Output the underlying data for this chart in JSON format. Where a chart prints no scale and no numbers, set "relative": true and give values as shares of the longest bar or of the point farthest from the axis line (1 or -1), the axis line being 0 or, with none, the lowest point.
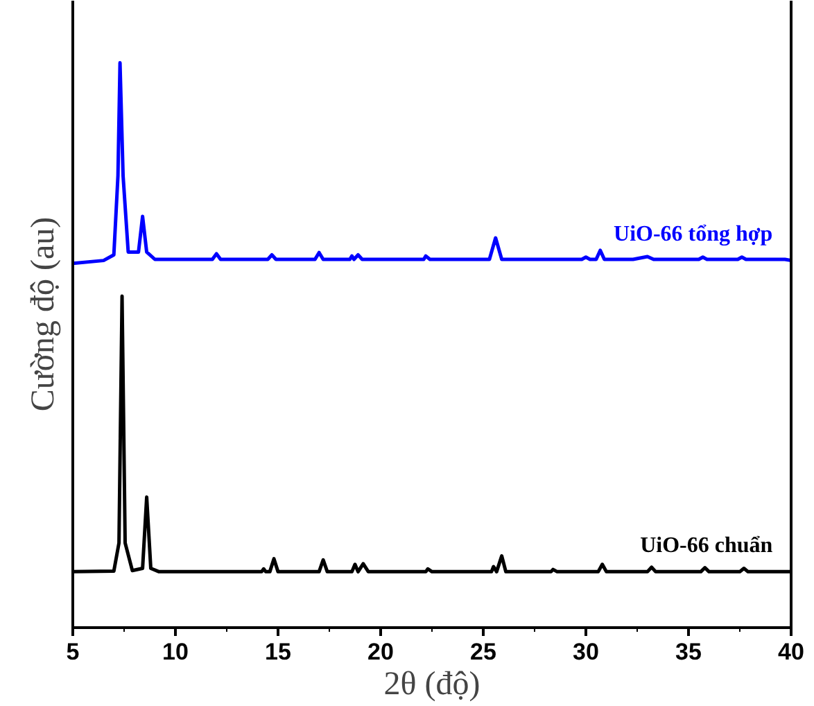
{
  "chart_data": {
    "type": "line",
    "relative": true,
    "xlabel": "2θ (độ)",
    "ylabel": "Cường độ (au)",
    "xlim": [
      5,
      40
    ],
    "xticks": [
      5,
      10,
      15,
      20,
      25,
      30,
      35,
      40
    ],
    "grid": false,
    "legend": false,
    "marker": "none",
    "line_style": "solid",
    "series": [
      {
        "name": "UiO-66 tổng hợp",
        "color": "#0000ff",
        "x": [
          5.0,
          6.5,
          7.0,
          7.2,
          7.3,
          7.45,
          7.7,
          8.2,
          8.4,
          8.6,
          9.0,
          11.8,
          12.0,
          12.2,
          14.5,
          14.7,
          14.9,
          16.8,
          17.0,
          17.2,
          18.5,
          18.6,
          18.7,
          18.9,
          19.1,
          21.0,
          22.1,
          22.2,
          22.4,
          25.3,
          25.6,
          25.9,
          28.0,
          29.8,
          30.0,
          30.2,
          30.5,
          30.7,
          30.9,
          32.3,
          33.0,
          33.3,
          35.5,
          35.7,
          35.9,
          37.4,
          37.6,
          37.8,
          39.7,
          40.0
        ],
        "values": [
          0.645,
          0.65,
          0.66,
          0.8,
          1.0,
          0.8,
          0.665,
          0.665,
          0.728,
          0.665,
          0.652,
          0.652,
          0.662,
          0.652,
          0.652,
          0.66,
          0.652,
          0.652,
          0.664,
          0.652,
          0.652,
          0.658,
          0.652,
          0.66,
          0.652,
          0.652,
          0.652,
          0.658,
          0.652,
          0.652,
          0.69,
          0.652,
          0.652,
          0.652,
          0.656,
          0.652,
          0.652,
          0.668,
          0.652,
          0.652,
          0.657,
          0.652,
          0.652,
          0.656,
          0.652,
          0.652,
          0.656,
          0.652,
          0.652,
          0.65
        ]
      },
      {
        "name": "UiO-66 chuẩn",
        "color": "#000000",
        "x": [
          5.0,
          7.0,
          7.25,
          7.4,
          7.55,
          7.9,
          8.4,
          8.6,
          8.8,
          9.2,
          14.2,
          14.3,
          14.4,
          14.6,
          14.8,
          15.0,
          17.0,
          17.2,
          17.4,
          18.6,
          18.75,
          18.9,
          19.15,
          19.4,
          22.2,
          22.3,
          22.5,
          25.4,
          25.5,
          25.65,
          25.9,
          26.1,
          28.3,
          28.4,
          28.6,
          30.6,
          30.8,
          31.0,
          33.0,
          33.2,
          33.4,
          35.6,
          35.8,
          36.0,
          37.5,
          37.7,
          37.9,
          40.0
        ],
        "values": [
          0.099,
          0.1,
          0.15,
          0.587,
          0.15,
          0.101,
          0.105,
          0.231,
          0.105,
          0.099,
          0.099,
          0.104,
          0.099,
          0.099,
          0.122,
          0.099,
          0.099,
          0.12,
          0.099,
          0.099,
          0.112,
          0.099,
          0.113,
          0.099,
          0.099,
          0.104,
          0.099,
          0.099,
          0.108,
          0.099,
          0.127,
          0.099,
          0.099,
          0.103,
          0.099,
          0.099,
          0.112,
          0.099,
          0.099,
          0.107,
          0.099,
          0.099,
          0.106,
          0.099,
          0.099,
          0.105,
          0.099,
          0.099
        ]
      }
    ]
  }
}
